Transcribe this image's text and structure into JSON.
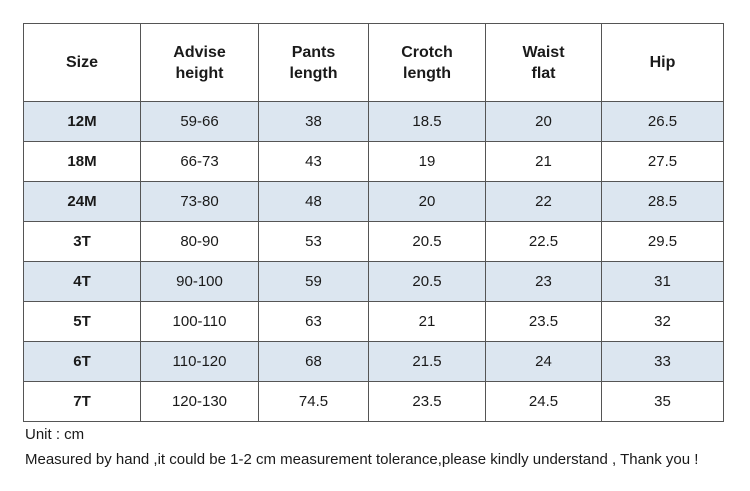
{
  "table": {
    "headers": [
      "Size",
      "Advise\nheight",
      "Pants\nlength",
      "Crotch\nlength",
      "Waist\nflat",
      "Hip"
    ],
    "rows": [
      [
        "12M",
        "59-66",
        "38",
        "18.5",
        "20",
        "26.5"
      ],
      [
        "18M",
        "66-73",
        "43",
        "19",
        "21",
        "27.5"
      ],
      [
        "24M",
        "73-80",
        "48",
        "20",
        "22",
        "28.5"
      ],
      [
        "3T",
        "80-90",
        "53",
        "20.5",
        "22.5",
        "29.5"
      ],
      [
        "4T",
        "90-100",
        "59",
        "20.5",
        "23",
        "31"
      ],
      [
        "5T",
        "100-110",
        "63",
        "21",
        "23.5",
        "32"
      ],
      [
        "6T",
        "110-120",
        "68",
        "21.5",
        "24",
        "33"
      ],
      [
        "7T",
        "120-130",
        "74.5",
        "23.5",
        "24.5",
        "35"
      ]
    ]
  },
  "notes": {
    "unit": "Unit : cm",
    "disclaimer": "Measured by hand ,it could be 1-2 cm measurement tolerance,please kindly understand , Thank you !"
  },
  "colors": {
    "alt_row": "#dce6f0",
    "border": "#555555"
  }
}
